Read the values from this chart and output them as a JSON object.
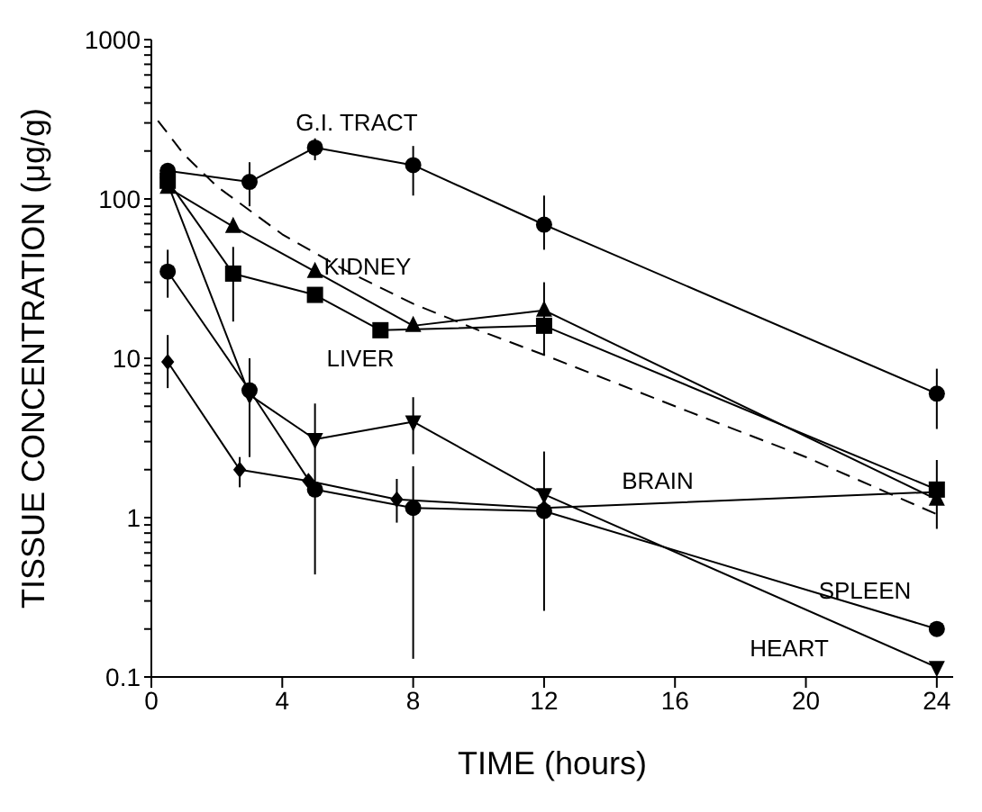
{
  "chart_data": {
    "type": "line",
    "xlabel": "TIME (hours)",
    "ylabel": "TISSUE CONCENTRATION (μg/g)",
    "log": "y",
    "xlim": [
      0,
      24.5
    ],
    "xticks": [
      0,
      4,
      8,
      12,
      16,
      20,
      24
    ],
    "ylim": [
      0.1,
      1000
    ],
    "yticks": [
      0.1,
      {
        "value": 0.2,
        "label": null
      },
      {
        "value": 0.3,
        "label": null
      },
      {
        "value": 0.4,
        "label": null
      },
      {
        "value": 0.5,
        "label": null
      },
      {
        "value": 0.6,
        "label": null
      },
      {
        "value": 0.7,
        "label": null
      },
      {
        "value": 0.8,
        "label": null
      },
      {
        "value": 0.9,
        "label": null
      },
      1,
      {
        "value": 2,
        "label": null
      },
      {
        "value": 3,
        "label": null
      },
      {
        "value": 4,
        "label": null
      },
      {
        "value": 5,
        "label": null
      },
      {
        "value": 6,
        "label": null
      },
      {
        "value": 7,
        "label": null
      },
      {
        "value": 8,
        "label": null
      },
      {
        "value": 9,
        "label": null
      },
      10,
      {
        "value": 20,
        "label": null
      },
      {
        "value": 30,
        "label": null
      },
      {
        "value": 40,
        "label": null
      },
      {
        "value": 50,
        "label": null
      },
      {
        "value": 60,
        "label": null
      },
      {
        "value": 70,
        "label": null
      },
      {
        "value": 80,
        "label": null
      },
      {
        "value": 90,
        "label": null
      },
      100,
      {
        "value": 200,
        "label": null
      },
      {
        "value": 300,
        "label": null
      },
      {
        "value": 400,
        "label": null
      },
      {
        "value": 500,
        "label": null
      },
      {
        "value": 600,
        "label": null
      },
      {
        "value": 700,
        "label": null
      },
      {
        "value": 800,
        "label": null
      },
      {
        "value": 900,
        "label": null
      },
      1000
    ],
    "grid": false,
    "line_style": "solid",
    "series": [
      {
        "name": "G.I. TRACT",
        "color": "#000000",
        "marker": "circle",
        "x": [
          0.5,
          3,
          5,
          8,
          12,
          24
        ],
        "values": [
          150,
          128,
          210,
          163,
          69,
          6
        ],
        "errors": [
          null,
          [
            90,
            170
          ],
          [
            175,
            240
          ],
          [
            105,
            215
          ],
          [
            48,
            105
          ],
          [
            3.6,
            8.6
          ]
        ]
      },
      {
        "name": "KIDNEY",
        "color": "#000000",
        "marker": "triangle",
        "x": [
          0.5,
          2.5,
          5,
          8,
          12,
          24
        ],
        "values": [
          118,
          67,
          35,
          16,
          20,
          1.3
        ],
        "errors": [
          null,
          null,
          null,
          null,
          [
            10.5,
            30
          ],
          [
            0.85,
            2.3
          ]
        ]
      },
      {
        "name": "LIVER",
        "color": "#000000",
        "marker": "square",
        "x": [
          0.5,
          2.5,
          5,
          7,
          12,
          24
        ],
        "values": [
          130,
          34,
          25,
          15,
          16,
          1.5
        ],
        "errors": [
          null,
          [
            17,
            50
          ],
          null,
          null,
          null,
          null
        ]
      },
      {
        "name": "SPLEEN",
        "color": "#000000",
        "marker": "circle",
        "x": [
          0.5,
          3,
          5,
          8,
          12,
          24
        ],
        "values": [
          35,
          6.3,
          1.5,
          1.15,
          1.1,
          0.2
        ],
        "errors": [
          [
            24,
            48
          ],
          null,
          [
            0.44,
            5.2
          ],
          [
            0.13,
            2.1
          ],
          [
            0.26,
            2.6
          ],
          null
        ]
      },
      {
        "name": "HEART",
        "color": "#000000",
        "marker": "triangle-down",
        "x": [
          0.5,
          3,
          5,
          8,
          12,
          24
        ],
        "values": [
          125,
          5.9,
          3.1,
          4,
          1.4,
          0.115
        ],
        "errors": [
          null,
          [
            2.4,
            10
          ],
          null,
          [
            2.5,
            5.7
          ],
          null,
          null
        ]
      },
      {
        "name": "BRAIN",
        "color": "#000000",
        "marker": "diamond",
        "x": [
          0.5,
          2.7,
          4.8,
          7.5,
          12,
          24
        ],
        "values": [
          9.5,
          2,
          1.7,
          1.3,
          1.15,
          1.45
        ],
        "errors": [
          [
            6.5,
            14
          ],
          [
            1.55,
            2.4
          ],
          null,
          [
            0.93,
            1.75
          ],
          null,
          null
        ]
      },
      {
        "color": "#000000",
        "marker": "none",
        "line_style": "dashed",
        "x": [
          0.2,
          1,
          2,
          4,
          6,
          8,
          10,
          12,
          16,
          20,
          24
        ],
        "values": [
          310,
          190,
          120,
          60,
          35,
          22,
          15,
          10.5,
          5,
          2.4,
          1.05
        ]
      }
    ]
  }
}
